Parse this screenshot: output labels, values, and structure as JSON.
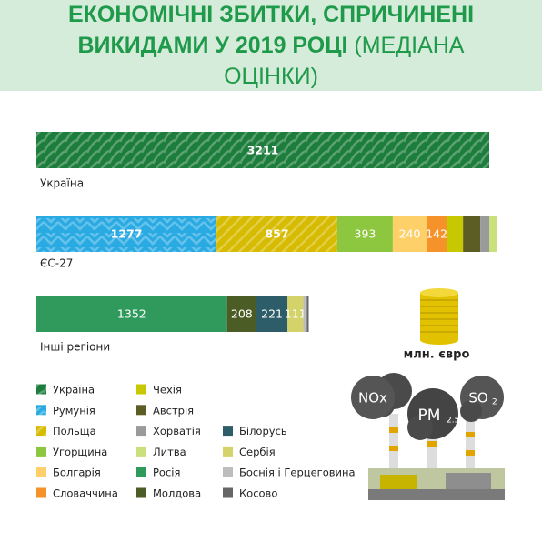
{
  "chart_data": {
    "type": "bar",
    "orientation": "horizontal",
    "stacked": true,
    "title": "ЕКОНОМІЧНІ ЗБИТКИ, СПРИЧИНЕНІ ВИКИДАМИ У 2019 РОЦІ",
    "subtitle": "(МЕДІАНА ОЦІНКИ)",
    "unit": "млн. євро",
    "categories": [
      "Україна",
      "ЄС-27",
      "Інші регіони"
    ],
    "series": [
      {
        "name": "Україна",
        "color": "#1d7d3c",
        "pattern": "waves",
        "values": [
          3211,
          null,
          null
        ],
        "value_labels": [
          "3211",
          null,
          null
        ]
      },
      {
        "name": "Румунія",
        "color": "#2aaae2",
        "pattern": "chevron",
        "values": [
          null,
          1277,
          null
        ],
        "value_labels": [
          null,
          "1277",
          null
        ]
      },
      {
        "name": "Польща",
        "color": "#d7bb00",
        "pattern": "diagonal",
        "values": [
          null,
          857,
          null
        ],
        "value_labels": [
          null,
          "857",
          null
        ]
      },
      {
        "name": "Угорщина",
        "color": "#8dc63f",
        "values": [
          null,
          393,
          null
        ],
        "value_labels": [
          null,
          "393",
          null
        ]
      },
      {
        "name": "Болгарія",
        "color": "#fdd06a",
        "values": [
          null,
          240,
          null
        ],
        "value_labels": [
          null,
          "240",
          null
        ]
      },
      {
        "name": "Словаччина",
        "color": "#f5922a",
        "values": [
          null,
          142,
          null
        ],
        "value_labels": [
          null,
          "142",
          null
        ]
      },
      {
        "name": "Чехія",
        "color": "#c7c800",
        "values": [
          null,
          116,
          null
        ],
        "value_labels": [
          null,
          null,
          null
        ]
      },
      {
        "name": "Австрія",
        "color": "#5b5d25",
        "values": [
          null,
          122,
          null
        ],
        "value_labels": [
          null,
          null,
          null
        ]
      },
      {
        "name": "Хорватія",
        "color": "#9a9a9a",
        "values": [
          null,
          64,
          null
        ],
        "value_labels": [
          null,
          null,
          null
        ]
      },
      {
        "name": "Литва",
        "color": "#c9e07c",
        "values": [
          null,
          52,
          null
        ],
        "value_labels": [
          null,
          null,
          null
        ]
      },
      {
        "name": "Росія",
        "color": "#2f9a5c",
        "values": [
          null,
          null,
          1352
        ],
        "value_labels": [
          null,
          null,
          "1352"
        ]
      },
      {
        "name": "Молдова",
        "color": "#4b5d24",
        "values": [
          null,
          null,
          208
        ],
        "value_labels": [
          null,
          null,
          "208"
        ]
      },
      {
        "name": "Білорусь",
        "color": "#2d5d68",
        "values": [
          null,
          null,
          221
        ],
        "value_labels": [
          null,
          null,
          "221"
        ]
      },
      {
        "name": "Сербія",
        "color": "#d4d36a",
        "values": [
          null,
          null,
          111
        ],
        "value_labels": [
          null,
          null,
          "111"
        ]
      },
      {
        "name": "Боснія і Герцеговина",
        "color": "#bdbdbd",
        "values": [
          null,
          null,
          26
        ],
        "value_labels": [
          null,
          null,
          null
        ]
      },
      {
        "name": "Косово",
        "color": "#666666",
        "values": [
          null,
          null,
          13
        ],
        "value_labels": [
          null,
          null,
          null
        ]
      }
    ],
    "illustration_labels": {
      "nox": "NOx",
      "pm": "PM",
      "pm_sub": "2.5",
      "so": "SO",
      "so_sub": "2"
    }
  }
}
